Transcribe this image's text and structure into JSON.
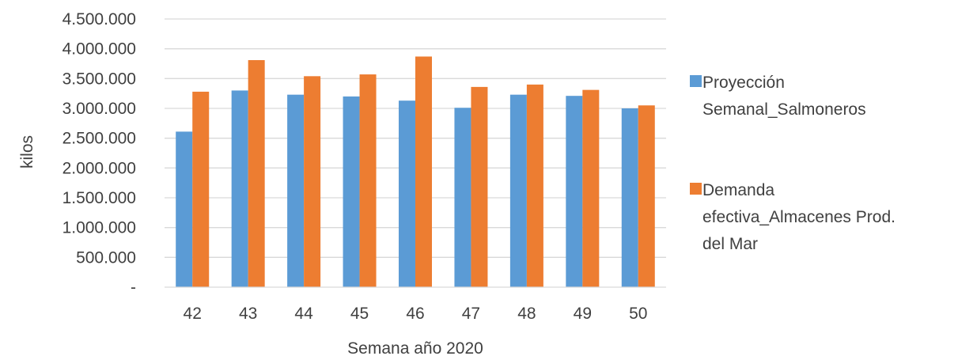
{
  "chart_data": {
    "type": "bar",
    "title": "",
    "xlabel": "Semana año 2020",
    "ylabel": "kilos",
    "categories": [
      "42",
      "43",
      "44",
      "45",
      "46",
      "47",
      "48",
      "49",
      "50"
    ],
    "y_ticks": [
      {
        "value": 0,
        "label": "-"
      },
      {
        "value": 500000,
        "label": "500.000"
      },
      {
        "value": 1000000,
        "label": "1.000.000"
      },
      {
        "value": 1500000,
        "label": "1.500.000"
      },
      {
        "value": 2000000,
        "label": "2.000.000"
      },
      {
        "value": 2500000,
        "label": "2.500.000"
      },
      {
        "value": 3000000,
        "label": "3.000.000"
      },
      {
        "value": 3500000,
        "label": "3.500.000"
      },
      {
        "value": 4000000,
        "label": "4.000.000"
      },
      {
        "value": 4500000,
        "label": "4.500.000"
      }
    ],
    "ylim": [
      0,
      4500000
    ],
    "grid": true,
    "legend_position": "right",
    "series": [
      {
        "name": "Proyección Semanal_Salmoneros",
        "legend_lines": [
          "Proyección",
          "Semanal_Salmoneros"
        ],
        "color": "#5B9BD5",
        "values": [
          2610000,
          3300000,
          3230000,
          3200000,
          3130000,
          3010000,
          3230000,
          3210000,
          3000000
        ]
      },
      {
        "name": "Demanda efectiva_Almacenes Prod. del Mar",
        "legend_lines": [
          "Demanda",
          "efectiva_Almacenes Prod.",
          "del Mar"
        ],
        "color": "#ED7D31",
        "values": [
          3280000,
          3810000,
          3540000,
          3570000,
          3870000,
          3360000,
          3400000,
          3310000,
          3050000
        ]
      }
    ]
  }
}
